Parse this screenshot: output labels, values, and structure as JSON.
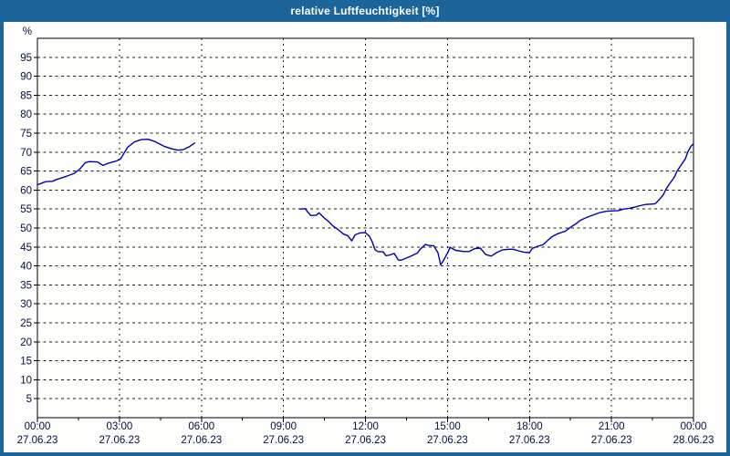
{
  "window": {
    "title": "relative Luftfeuchtigkeit [%]"
  },
  "colors": {
    "titlebar": "#1b659a",
    "window_border": "#1b659a",
    "plot_background": "#fefefc",
    "frame": "#000000",
    "grid": "#1c1c1c",
    "tick_text": "#001040",
    "line": "#0000aa"
  },
  "chart_data": {
    "type": "line",
    "title": "relative Luftfeuchtigkeit [%]",
    "ylabel": "%",
    "xlabel": "",
    "ylim": [
      0,
      100
    ],
    "yticks": [
      95,
      90,
      85,
      80,
      75,
      70,
      65,
      60,
      55,
      50,
      45,
      40,
      35,
      30,
      25,
      20,
      15,
      10,
      5
    ],
    "xlim_hours": [
      0,
      24
    ],
    "minor_tick_interval_hours": 1.5,
    "grid": "dashed",
    "legend": "none",
    "xticks": [
      {
        "hour": 0,
        "time": "00:00",
        "date": "27.06.23"
      },
      {
        "hour": 3,
        "time": "03:00",
        "date": "27.06.23"
      },
      {
        "hour": 6,
        "time": "06:00",
        "date": "27.06.23"
      },
      {
        "hour": 9,
        "time": "09:00",
        "date": "27.06.23"
      },
      {
        "hour": 12,
        "time": "12:00",
        "date": "27.06.23"
      },
      {
        "hour": 15,
        "time": "15:00",
        "date": "27.06.23"
      },
      {
        "hour": 18,
        "time": "18:00",
        "date": "27.06.23"
      },
      {
        "hour": 21,
        "time": "21:00",
        "date": "27.06.23"
      },
      {
        "hour": 24,
        "time": "00:00",
        "date": "28.06.23"
      }
    ],
    "series": [
      {
        "name": "relative Luftfeuchtigkeit",
        "color": "#0000aa",
        "segments": [
          [
            [
              0.0,
              61.4
            ],
            [
              0.3,
              62.2
            ],
            [
              0.55,
              62.3
            ],
            [
              0.7,
              62.8
            ],
            [
              1.05,
              63.6
            ],
            [
              1.35,
              64.4
            ],
            [
              1.55,
              65.5
            ],
            [
              1.75,
              67.2
            ],
            [
              1.9,
              67.5
            ],
            [
              2.2,
              67.4
            ],
            [
              2.4,
              66.5
            ],
            [
              2.6,
              67.1
            ],
            [
              2.9,
              67.7
            ],
            [
              3.05,
              68.3
            ],
            [
              3.3,
              71.3
            ],
            [
              3.55,
              72.7
            ],
            [
              3.8,
              73.3
            ],
            [
              4.05,
              73.4
            ],
            [
              4.3,
              72.8
            ],
            [
              4.65,
              71.5
            ],
            [
              4.9,
              70.9
            ],
            [
              5.15,
              70.5
            ],
            [
              5.35,
              70.7
            ],
            [
              5.55,
              71.4
            ],
            [
              5.75,
              72.4
            ]
          ],
          [
            [
              9.6,
              55.0
            ],
            [
              9.8,
              55.1
            ],
            [
              9.9,
              54.1
            ],
            [
              10.0,
              53.3
            ],
            [
              10.2,
              53.4
            ],
            [
              10.3,
              54.0
            ],
            [
              10.5,
              52.6
            ],
            [
              10.65,
              51.7
            ],
            [
              10.8,
              50.6
            ],
            [
              11.0,
              49.6
            ],
            [
              11.2,
              48.4
            ],
            [
              11.35,
              48.0
            ],
            [
              11.5,
              46.6
            ],
            [
              11.62,
              48.2
            ],
            [
              11.8,
              48.7
            ],
            [
              12.0,
              48.8
            ],
            [
              12.15,
              47.8
            ],
            [
              12.25,
              46.3
            ],
            [
              12.35,
              44.3
            ],
            [
              12.45,
              43.8
            ],
            [
              12.65,
              43.7
            ],
            [
              12.75,
              42.7
            ],
            [
              12.9,
              42.9
            ],
            [
              13.05,
              43.3
            ],
            [
              13.2,
              41.6
            ],
            [
              13.3,
              41.5
            ],
            [
              13.5,
              42.1
            ],
            [
              13.7,
              42.7
            ],
            [
              13.9,
              43.4
            ],
            [
              14.0,
              44.4
            ],
            [
              14.2,
              45.7
            ],
            [
              14.3,
              45.4
            ],
            [
              14.5,
              45.3
            ],
            [
              14.65,
              43.5
            ],
            [
              14.75,
              40.3
            ],
            [
              14.85,
              41.4
            ],
            [
              15.0,
              43.4
            ],
            [
              15.1,
              44.9
            ],
            [
              15.3,
              44.1
            ],
            [
              15.6,
              43.8
            ],
            [
              15.8,
              43.8
            ],
            [
              16.0,
              44.6
            ],
            [
              16.2,
              44.7
            ],
            [
              16.4,
              43.0
            ],
            [
              16.6,
              42.6
            ],
            [
              16.8,
              43.5
            ],
            [
              17.0,
              44.2
            ],
            [
              17.25,
              44.4
            ],
            [
              17.4,
              44.4
            ],
            [
              17.6,
              44.0
            ],
            [
              17.8,
              43.6
            ],
            [
              18.0,
              43.5
            ],
            [
              18.1,
              44.6
            ],
            [
              18.3,
              45.2
            ],
            [
              18.5,
              45.6
            ],
            [
              18.65,
              46.6
            ],
            [
              18.8,
              47.6
            ],
            [
              19.0,
              48.4
            ],
            [
              19.2,
              48.9
            ],
            [
              19.3,
              49.1
            ],
            [
              19.5,
              50.2
            ],
            [
              19.7,
              51.1
            ],
            [
              19.85,
              52.0
            ],
            [
              20.0,
              52.5
            ],
            [
              20.2,
              53.1
            ],
            [
              20.4,
              53.6
            ],
            [
              20.6,
              54.1
            ],
            [
              20.8,
              54.4
            ],
            [
              21.0,
              54.5
            ],
            [
              21.25,
              54.6
            ],
            [
              21.45,
              55.0
            ],
            [
              21.65,
              55.2
            ],
            [
              21.85,
              55.5
            ],
            [
              22.05,
              55.9
            ],
            [
              22.25,
              56.2
            ],
            [
              22.45,
              56.3
            ],
            [
              22.6,
              56.4
            ],
            [
              22.75,
              57.5
            ],
            [
              22.9,
              58.8
            ],
            [
              23.0,
              60.3
            ],
            [
              23.15,
              61.9
            ],
            [
              23.3,
              63.4
            ],
            [
              23.4,
              65.0
            ],
            [
              23.55,
              66.6
            ],
            [
              23.7,
              68.2
            ],
            [
              23.8,
              70.2
            ],
            [
              23.9,
              71.5
            ],
            [
              24.0,
              72.2
            ]
          ]
        ]
      }
    ]
  }
}
